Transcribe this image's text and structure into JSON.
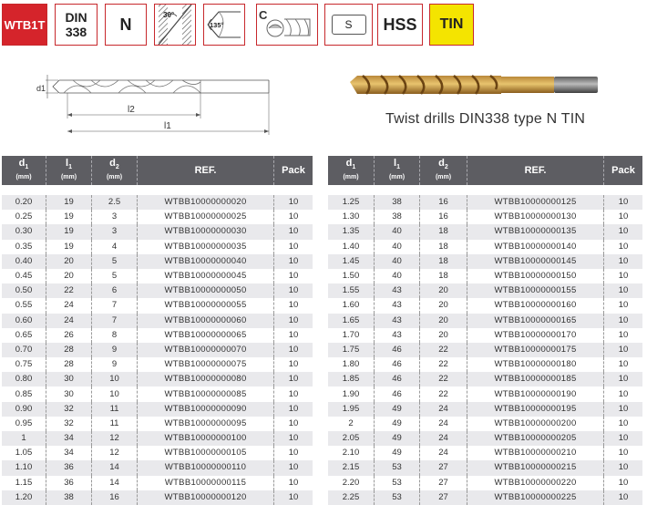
{
  "badges": {
    "brand": "WTB1T",
    "standard_line1": "DIN",
    "standard_line2": "338",
    "type": "N",
    "angle1": "30°",
    "angle2": "135°",
    "shank_type": "S",
    "material": "HSS",
    "coating": "TIN"
  },
  "drawing": {
    "d1_label": "d1",
    "l2_label": "l2",
    "l1_label": "l1"
  },
  "caption": "Twist drills DIN338 type N TIN",
  "colors": {
    "header_bg": "#5d5d62",
    "row_alt": "#e9e9ec",
    "brand_red": "#d5242b",
    "coating_yellow": "#f4e400"
  },
  "table_headers": [
    {
      "label": "d",
      "sub": "1",
      "unit": "(mm)"
    },
    {
      "label": "l",
      "sub": "1",
      "unit": "(mm)"
    },
    {
      "label": "d",
      "sub": "2",
      "unit": "(mm)"
    },
    {
      "label": "REF.",
      "sub": "",
      "unit": ""
    },
    {
      "label": "Pack",
      "sub": "",
      "unit": ""
    }
  ],
  "table_left": [
    [
      "0.20",
      "19",
      "2.5",
      "WTBB10000000020",
      "10"
    ],
    [
      "0.25",
      "19",
      "3",
      "WTBB10000000025",
      "10"
    ],
    [
      "0.30",
      "19",
      "3",
      "WTBB10000000030",
      "10"
    ],
    [
      "0.35",
      "19",
      "4",
      "WTBB10000000035",
      "10"
    ],
    [
      "0.40",
      "20",
      "5",
      "WTBB10000000040",
      "10"
    ],
    [
      "0.45",
      "20",
      "5",
      "WTBB10000000045",
      "10"
    ],
    [
      "0.50",
      "22",
      "6",
      "WTBB10000000050",
      "10"
    ],
    [
      "0.55",
      "24",
      "7",
      "WTBB10000000055",
      "10"
    ],
    [
      "0.60",
      "24",
      "7",
      "WTBB10000000060",
      "10"
    ],
    [
      "0.65",
      "26",
      "8",
      "WTBB10000000065",
      "10"
    ],
    [
      "0.70",
      "28",
      "9",
      "WTBB10000000070",
      "10"
    ],
    [
      "0.75",
      "28",
      "9",
      "WTBB10000000075",
      "10"
    ],
    [
      "0.80",
      "30",
      "10",
      "WTBB10000000080",
      "10"
    ],
    [
      "0.85",
      "30",
      "10",
      "WTBB10000000085",
      "10"
    ],
    [
      "0.90",
      "32",
      "11",
      "WTBB10000000090",
      "10"
    ],
    [
      "0.95",
      "32",
      "11",
      "WTBB10000000095",
      "10"
    ],
    [
      "1",
      "34",
      "12",
      "WTBB10000000100",
      "10"
    ],
    [
      "1.05",
      "34",
      "12",
      "WTBB10000000105",
      "10"
    ],
    [
      "1.10",
      "36",
      "14",
      "WTBB10000000110",
      "10"
    ],
    [
      "1.15",
      "36",
      "14",
      "WTBB10000000115",
      "10"
    ],
    [
      "1.20",
      "38",
      "16",
      "WTBB10000000120",
      "10"
    ]
  ],
  "table_right": [
    [
      "1.25",
      "38",
      "16",
      "WTBB10000000125",
      "10"
    ],
    [
      "1.30",
      "38",
      "16",
      "WTBB10000000130",
      "10"
    ],
    [
      "1.35",
      "40",
      "18",
      "WTBB10000000135",
      "10"
    ],
    [
      "1.40",
      "40",
      "18",
      "WTBB10000000140",
      "10"
    ],
    [
      "1.45",
      "40",
      "18",
      "WTBB10000000145",
      "10"
    ],
    [
      "1.50",
      "40",
      "18",
      "WTBB10000000150",
      "10"
    ],
    [
      "1.55",
      "43",
      "20",
      "WTBB10000000155",
      "10"
    ],
    [
      "1.60",
      "43",
      "20",
      "WTBB10000000160",
      "10"
    ],
    [
      "1.65",
      "43",
      "20",
      "WTBB10000000165",
      "10"
    ],
    [
      "1.70",
      "43",
      "20",
      "WTBB10000000170",
      "10"
    ],
    [
      "1.75",
      "46",
      "22",
      "WTBB10000000175",
      "10"
    ],
    [
      "1.80",
      "46",
      "22",
      "WTBB10000000180",
      "10"
    ],
    [
      "1.85",
      "46",
      "22",
      "WTBB10000000185",
      "10"
    ],
    [
      "1.90",
      "46",
      "22",
      "WTBB10000000190",
      "10"
    ],
    [
      "1.95",
      "49",
      "24",
      "WTBB10000000195",
      "10"
    ],
    [
      "2",
      "49",
      "24",
      "WTBB10000000200",
      "10"
    ],
    [
      "2.05",
      "49",
      "24",
      "WTBB10000000205",
      "10"
    ],
    [
      "2.10",
      "49",
      "24",
      "WTBB10000000210",
      "10"
    ],
    [
      "2.15",
      "53",
      "27",
      "WTBB10000000215",
      "10"
    ],
    [
      "2.20",
      "53",
      "27",
      "WTBB10000000220",
      "10"
    ],
    [
      "2.25",
      "53",
      "27",
      "WTBB10000000225",
      "10"
    ]
  ]
}
